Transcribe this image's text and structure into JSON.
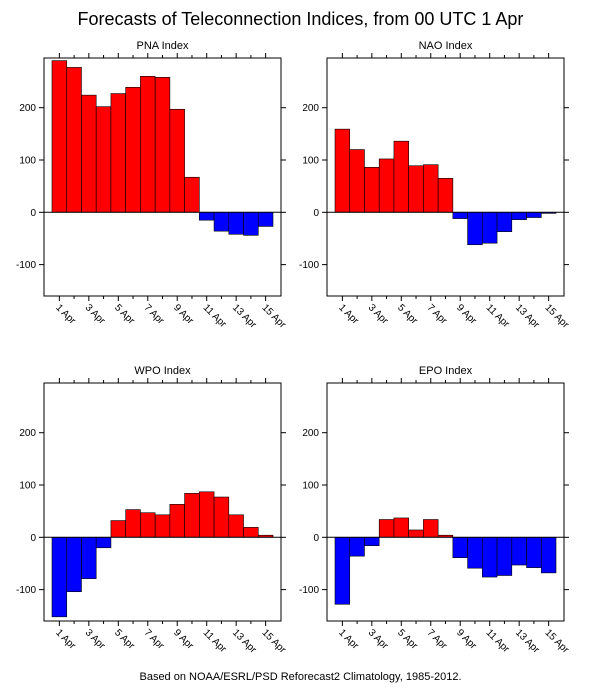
{
  "figure": {
    "title": "Forecasts of Teleconnection Indices, from 00 UTC 1 Apr",
    "footer": "Based on NOAA/ESRL/PSD Reforecast2 Climatology, 1985-2012.",
    "positive_color": "#ff0000",
    "negative_color": "#0000ff"
  },
  "chart_data": [
    {
      "type": "bar",
      "title": "PNA Index",
      "x_tick_labels": [
        "1 Apr",
        "3 Apr",
        "5 Apr",
        "7 Apr",
        "9 Apr",
        "11 Apr",
        "13 Apr",
        "15 Apr"
      ],
      "days": [
        1,
        2,
        3,
        4,
        5,
        6,
        7,
        8,
        9,
        10,
        11,
        12,
        13,
        14,
        15
      ],
      "values": [
        290,
        277,
        224,
        202,
        227,
        239,
        260,
        258,
        197,
        67,
        -15,
        -36,
        -42,
        -44,
        -27
      ],
      "ylim": [
        -160,
        295
      ],
      "y_ticks": [
        -100,
        0,
        100,
        200
      ],
      "grid": false
    },
    {
      "type": "bar",
      "title": "NAO Index",
      "x_tick_labels": [
        "1 Apr",
        "3 Apr",
        "5 Apr",
        "7 Apr",
        "9 Apr",
        "11 Apr",
        "13 Apr",
        "15 Apr"
      ],
      "days": [
        1,
        2,
        3,
        4,
        5,
        6,
        7,
        8,
        9,
        10,
        11,
        12,
        13,
        14,
        15
      ],
      "values": [
        159,
        120,
        86,
        102,
        136,
        89,
        91,
        65,
        -12,
        -62,
        -59,
        -37,
        -14,
        -10,
        -2
      ],
      "ylim": [
        -160,
        295
      ],
      "y_ticks": [
        -100,
        0,
        100,
        200
      ],
      "grid": false
    },
    {
      "type": "bar",
      "title": "WPO Index",
      "x_tick_labels": [
        "1 Apr",
        "3 Apr",
        "5 Apr",
        "7 Apr",
        "9 Apr",
        "11 Apr",
        "13 Apr",
        "15 Apr"
      ],
      "days": [
        1,
        2,
        3,
        4,
        5,
        6,
        7,
        8,
        9,
        10,
        11,
        12,
        13,
        14,
        15
      ],
      "values": [
        -152,
        -104,
        -79,
        -20,
        32,
        53,
        47,
        43,
        63,
        84,
        87,
        77,
        43,
        19,
        4
      ],
      "ylim": [
        -160,
        295
      ],
      "y_ticks": [
        -100,
        0,
        100,
        200
      ],
      "grid": false
    },
    {
      "type": "bar",
      "title": "EPO Index",
      "x_tick_labels": [
        "1 Apr",
        "3 Apr",
        "5 Apr",
        "7 Apr",
        "9 Apr",
        "11 Apr",
        "13 Apr",
        "15 Apr"
      ],
      "days": [
        1,
        2,
        3,
        4,
        5,
        6,
        7,
        8,
        9,
        10,
        11,
        12,
        13,
        14,
        15
      ],
      "values": [
        -128,
        -36,
        -16,
        34,
        37,
        14,
        34,
        4,
        -39,
        -59,
        -76,
        -73,
        -53,
        -58,
        -68
      ],
      "ylim": [
        -160,
        295
      ],
      "y_ticks": [
        -100,
        0,
        100,
        200
      ],
      "grid": false
    }
  ]
}
